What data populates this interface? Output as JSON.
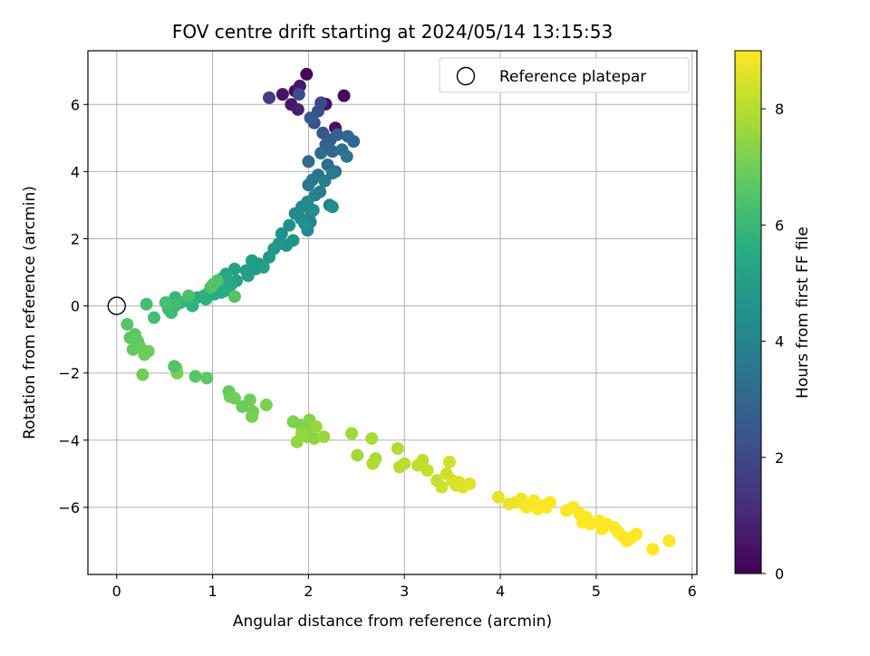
{
  "chart_data": {
    "type": "scatter",
    "title": "FOV centre drift starting at 2024/05/14 13:15:53",
    "xlabel": "Angular distance from reference (arcmin)",
    "ylabel": "Rotation from reference (arcmin)",
    "xlim": [
      -0.3,
      6.05
    ],
    "ylim": [
      -8.0,
      7.6
    ],
    "xticks": [
      0,
      1,
      2,
      3,
      4,
      5,
      6
    ],
    "yticks": [
      -6,
      -4,
      -2,
      0,
      2,
      4,
      6
    ],
    "grid": true,
    "legend": {
      "placement": "top-right",
      "entries": [
        "Reference platepar"
      ]
    },
    "reference_point": {
      "x": 0,
      "y": 0,
      "label": "Reference platepar"
    },
    "colorbar": {
      "label": "Hours from first FF file",
      "colormap": "viridis",
      "range": [
        0,
        9
      ],
      "ticks": [
        0,
        2,
        4,
        6,
        8
      ]
    },
    "series": [
      {
        "x": [
          1.98,
          2.37,
          1.86,
          2.18,
          2.28,
          1.73,
          1.91,
          1.59,
          1.82,
          1.89,
          2.13,
          1.9,
          2.1,
          2.06,
          2.15,
          2.02,
          2.23,
          2.3,
          2.18,
          2.25,
          2.41,
          2.47,
          2.0,
          2.13,
          2.2,
          2.35,
          2.28,
          2.4,
          2.1,
          2.04,
          2.0,
          2.25,
          2.17,
          2.12,
          2.22,
          2.07,
          2.03,
          1.92,
          2.02,
          1.99,
          1.86,
          1.93,
          1.99,
          2.05,
          2.25,
          1.8,
          1.72,
          1.96,
          1.77,
          1.84,
          1.69,
          1.64,
          1.59,
          1.48,
          1.45,
          1.41,
          1.35,
          1.53,
          1.37,
          1.25,
          1.23,
          1.14,
          1.09,
          1.2,
          1.13,
          1.17,
          1.09,
          1.02,
          0.97,
          0.91,
          0.84,
          0.93,
          0.79,
          0.75,
          0.67,
          0.61,
          0.56,
          0.54,
          0.57,
          0.61,
          0.39,
          0.31,
          0.51,
          0.75,
          0.98,
          1.05,
          1.01,
          1.23,
          0.11,
          0.14,
          0.19,
          0.22,
          0.17,
          0.24,
          0.29,
          0.33,
          0.27,
          0.62,
          0.63,
          0.6,
          0.82,
          0.94,
          1.17,
          1.18,
          1.23,
          1.31,
          1.39,
          1.42,
          1.41,
          1.56,
          1.84,
          1.92,
          1.98,
          2.01,
          1.99,
          2.06,
          1.88,
          1.93,
          2.16,
          2.08,
          2.45,
          2.51,
          2.66,
          2.7,
          2.67,
          2.93,
          2.95,
          3.0,
          3.14,
          3.19,
          3.24,
          3.34,
          3.39,
          3.44,
          3.5,
          3.47,
          3.54,
          3.57,
          3.61,
          3.68,
          3.98,
          4.09,
          4.16,
          4.22,
          4.27,
          4.31,
          4.35,
          4.39,
          4.44,
          4.48,
          4.52,
          4.69,
          4.76,
          4.83,
          4.86,
          4.9,
          4.94,
          5.03,
          5.06,
          5.11,
          5.19,
          5.23,
          5.27,
          5.32,
          5.37,
          5.42,
          5.76,
          5.59
        ],
        "y": [
          6.9,
          6.26,
          6.4,
          6.01,
          5.3,
          6.3,
          6.55,
          6.2,
          6.0,
          5.85,
          6.05,
          6.3,
          5.8,
          5.45,
          5.15,
          5.6,
          4.95,
          5.1,
          4.8,
          4.6,
          5.05,
          4.9,
          4.3,
          4.55,
          4.2,
          4.65,
          4.0,
          4.45,
          3.9,
          3.75,
          3.6,
          3.95,
          3.72,
          3.4,
          3.0,
          3.3,
          2.8,
          2.6,
          2.5,
          2.25,
          2.75,
          2.95,
          3.1,
          2.85,
          2.95,
          2.4,
          2.15,
          2.45,
          1.8,
          1.95,
          1.85,
          1.7,
          1.45,
          1.25,
          1.1,
          1.35,
          1.05,
          1.15,
          0.9,
          0.75,
          1.1,
          0.95,
          0.8,
          0.65,
          0.45,
          0.55,
          0.4,
          0.35,
          0.45,
          0.3,
          0.25,
          0.2,
          0.0,
          0.15,
          0.1,
          0.25,
          0.05,
          -0.1,
          -0.2,
          0.0,
          -0.35,
          0.05,
          0.1,
          0.3,
          0.55,
          0.75,
          0.65,
          0.28,
          -0.55,
          -0.95,
          -0.85,
          -1.05,
          -1.3,
          -1.2,
          -1.45,
          -1.35,
          -2.05,
          -1.85,
          -2.0,
          -1.8,
          -2.1,
          -2.15,
          -2.55,
          -2.7,
          -2.75,
          -3.0,
          -2.8,
          -3.15,
          -3.3,
          -2.95,
          -3.45,
          -3.55,
          -3.7,
          -3.4,
          -3.9,
          -3.95,
          -4.05,
          -3.8,
          -3.9,
          -3.6,
          -3.8,
          -4.45,
          -3.95,
          -4.55,
          -4.7,
          -4.25,
          -4.8,
          -4.7,
          -4.75,
          -4.6,
          -4.9,
          -5.2,
          -5.4,
          -5.0,
          -5.2,
          -4.65,
          -5.35,
          -5.25,
          -5.4,
          -5.3,
          -5.7,
          -5.9,
          -5.85,
          -5.75,
          -6.0,
          -5.9,
          -5.8,
          -6.05,
          -5.95,
          -6.0,
          -5.85,
          -6.1,
          -6.0,
          -6.2,
          -6.45,
          -6.3,
          -6.5,
          -6.4,
          -6.65,
          -6.5,
          -6.6,
          -6.75,
          -6.85,
          -7.0,
          -6.9,
          -6.8,
          -7.0,
          -7.25
        ],
        "hours": [
          0.2,
          0.25,
          0.3,
          0.35,
          0.4,
          0.5,
          0.55,
          1.6,
          0.6,
          0.8,
          2.0,
          2.1,
          2.2,
          2.3,
          2.4,
          2.5,
          2.6,
          2.7,
          2.8,
          2.9,
          2.95,
          3.0,
          3.1,
          3.15,
          3.2,
          3.25,
          3.3,
          3.4,
          3.5,
          3.55,
          3.6,
          3.65,
          3.7,
          3.8,
          3.85,
          3.9,
          4.0,
          4.05,
          4.1,
          4.15,
          4.2,
          4.25,
          4.3,
          4.35,
          4.4,
          4.45,
          4.5,
          4.55,
          4.6,
          4.65,
          4.7,
          4.75,
          4.8,
          4.85,
          4.9,
          4.95,
          5.0,
          5.05,
          5.1,
          5.15,
          5.2,
          5.25,
          5.3,
          5.35,
          5.4,
          5.45,
          5.5,
          5.55,
          5.6,
          5.65,
          5.7,
          5.75,
          5.8,
          5.85,
          5.9,
          5.95,
          6.0,
          6.05,
          6.1,
          6.15,
          6.2,
          6.25,
          6.3,
          6.35,
          6.4,
          6.45,
          6.5,
          6.55,
          6.6,
          6.65,
          6.7,
          6.75,
          6.8,
          6.85,
          6.9,
          6.95,
          7.0,
          7.05,
          7.1,
          6.5,
          6.6,
          6.7,
          6.8,
          6.9,
          7.0,
          6.9,
          7.0,
          7.0,
          7.1,
          7.1,
          7.2,
          7.2,
          7.3,
          7.3,
          7.4,
          7.4,
          7.5,
          7.5,
          7.6,
          7.6,
          7.7,
          7.7,
          7.8,
          7.8,
          7.9,
          7.9,
          8.0,
          8.0,
          8.1,
          8.1,
          8.2,
          8.2,
          8.3,
          8.3,
          8.4,
          8.4,
          8.45,
          8.5,
          8.55,
          8.6,
          8.65,
          8.7,
          8.75,
          8.8,
          8.85,
          8.9,
          8.92,
          8.95,
          8.97,
          9.0,
          9.0,
          9.0,
          9.0,
          9.0,
          9.0,
          9.0,
          9.0,
          9.0,
          9.0,
          9.0,
          9.0,
          9.0,
          9.0,
          9.0,
          9.0,
          9.0,
          8.95,
          9.0
        ]
      }
    ]
  }
}
